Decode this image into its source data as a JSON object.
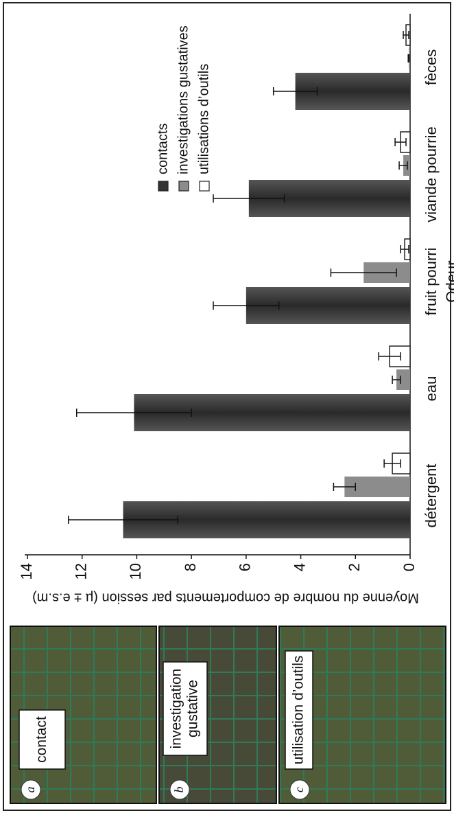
{
  "chart_data": {
    "type": "bar",
    "y_label": "Moyenne du nombre de comportements par session (µ ± e.s.m)",
    "x_label": "Odeur",
    "categories": [
      "détergent",
      "eau",
      "fruit pourri",
      "viande pourrie",
      "fèces"
    ],
    "series": [
      {
        "name": "contacts",
        "color": "#3c3c3c",
        "values": [
          10.5,
          10.1,
          6.0,
          5.9,
          4.2
        ],
        "errors": [
          2.0,
          2.1,
          1.2,
          1.3,
          0.8
        ]
      },
      {
        "name": "investigations gustatives",
        "color": "#8c8c8c",
        "values": [
          2.4,
          0.5,
          1.7,
          0.25,
          0.05
        ],
        "errors": [
          0.4,
          0.15,
          1.2,
          0.15,
          0.02
        ]
      },
      {
        "name": "utilisations d’outils",
        "color": "#ffffff",
        "values": [
          0.65,
          0.75,
          0.2,
          0.35,
          0.15
        ],
        "errors": [
          0.3,
          0.4,
          0.15,
          0.2,
          0.1
        ]
      }
    ],
    "ylim": [
      0,
      14
    ],
    "yticks": [
      0,
      2,
      4,
      6,
      8,
      10,
      12,
      14
    ],
    "grid": false
  },
  "panels": [
    {
      "letter": "a",
      "lines": [
        "contact"
      ]
    },
    {
      "letter": "b",
      "lines": [
        "investigation",
        "gustative"
      ]
    },
    {
      "letter": "c",
      "lines": [
        "utilisation d’outils"
      ]
    }
  ]
}
